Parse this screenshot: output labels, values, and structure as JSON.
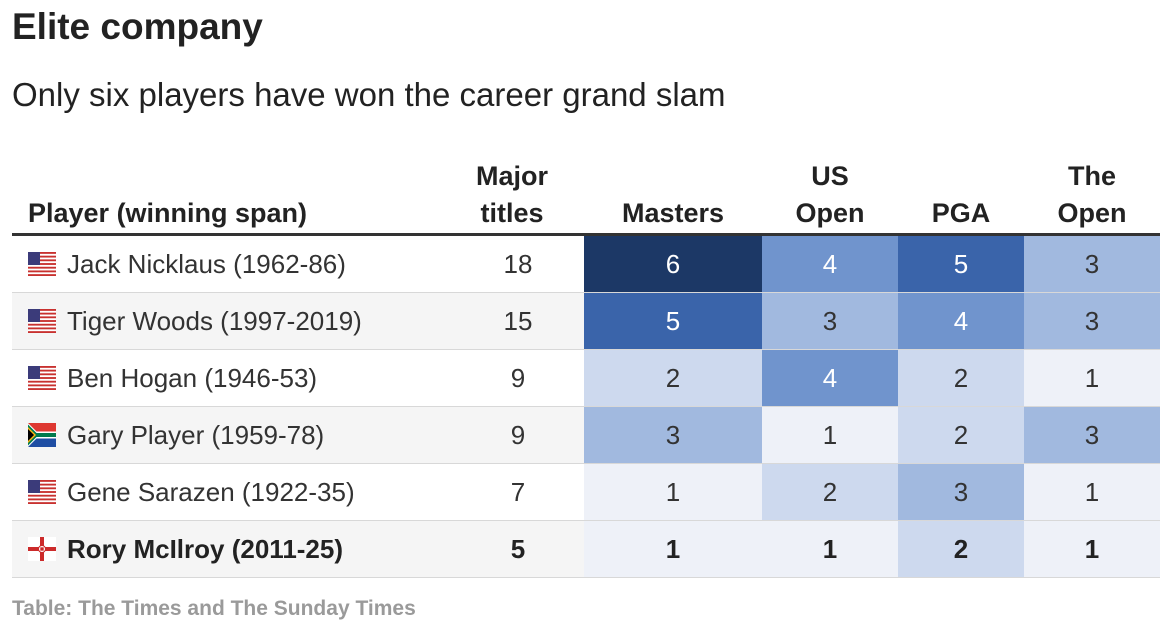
{
  "title": "Elite company",
  "subtitle": "Only six players have won the career grand slam",
  "source": "Table: The Times and The Sunday Times",
  "colors": {
    "scale": [
      "#eef1f8",
      "#cdd9ee",
      "#a1b9df",
      "#7094cd",
      "#3a64aa",
      "#1c3866"
    ],
    "header_rule": "#333333",
    "source_text": "#9a9a9a"
  },
  "chart_data": {
    "type": "table",
    "columns": [
      [
        "Player (winning span)"
      ],
      [
        "Major",
        "titles"
      ],
      [
        "Masters"
      ],
      [
        "US",
        "Open"
      ],
      [
        "PGA"
      ],
      [
        "The",
        "Open"
      ]
    ],
    "rows": [
      {
        "flag": "usa-flag-icon",
        "player": "Jack Nicklaus (1962-86)",
        "major_titles": 18,
        "masters": 6,
        "us_open": 4,
        "pga": 5,
        "the_open": 3,
        "bold": false
      },
      {
        "flag": "usa-flag-icon",
        "player": "Tiger Woods (1997-2019)",
        "major_titles": 15,
        "masters": 5,
        "us_open": 3,
        "pga": 4,
        "the_open": 3,
        "bold": false
      },
      {
        "flag": "usa-flag-icon",
        "player": "Ben Hogan (1946-53)",
        "major_titles": 9,
        "masters": 2,
        "us_open": 4,
        "pga": 2,
        "the_open": 1,
        "bold": false
      },
      {
        "flag": "south-africa-flag-icon",
        "player": "Gary Player (1959-78)",
        "major_titles": 9,
        "masters": 3,
        "us_open": 1,
        "pga": 2,
        "the_open": 3,
        "bold": false
      },
      {
        "flag": "usa-flag-icon",
        "player": "Gene Sarazen (1922-35)",
        "major_titles": 7,
        "masters": 1,
        "us_open": 2,
        "pga": 3,
        "the_open": 1,
        "bold": false
      },
      {
        "flag": "northern-ireland-flag-icon",
        "player": "Rory McIlroy (2011-25)",
        "major_titles": 5,
        "masters": 1,
        "us_open": 1,
        "pga": 2,
        "the_open": 1,
        "bold": true
      }
    ]
  }
}
